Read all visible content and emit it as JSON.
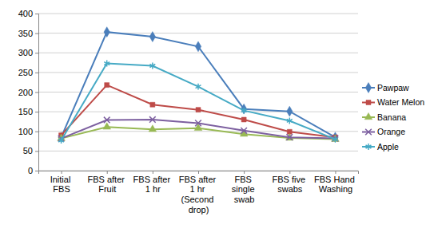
{
  "chart_data": {
    "type": "line",
    "categories": [
      "Initial FBS",
      "FBS after Fruit",
      "FBS after 1 hr",
      "FBS after 1 hr (Second drop)",
      "FBS single swab",
      "FBS five swabs",
      "FBS Hand Washing"
    ],
    "series": [
      {
        "name": "Pawpaw",
        "color": "#4a7ebb",
        "marker": "diamond",
        "values": [
          85,
          353,
          341,
          316,
          157,
          151,
          85
        ]
      },
      {
        "name": "Water Melon",
        "color": "#be4b48",
        "marker": "square",
        "values": [
          90,
          218,
          168,
          155,
          130,
          99,
          85
        ]
      },
      {
        "name": "Banana",
        "color": "#98b954",
        "marker": "triangle",
        "values": [
          82,
          111,
          105,
          108,
          93,
          83,
          80
        ]
      },
      {
        "name": "Orange",
        "color": "#7d60a0",
        "marker": "x",
        "values": [
          82,
          129,
          130,
          121,
          102,
          85,
          82
        ]
      },
      {
        "name": "Apple",
        "color": "#46aac5",
        "marker": "asterisk",
        "values": [
          77,
          273,
          267,
          214,
          153,
          127,
          80
        ]
      }
    ],
    "ylim": [
      0,
      400
    ],
    "yticks": [
      0,
      50,
      100,
      150,
      200,
      250,
      300,
      350,
      400
    ],
    "grid": true,
    "legend": "right"
  }
}
